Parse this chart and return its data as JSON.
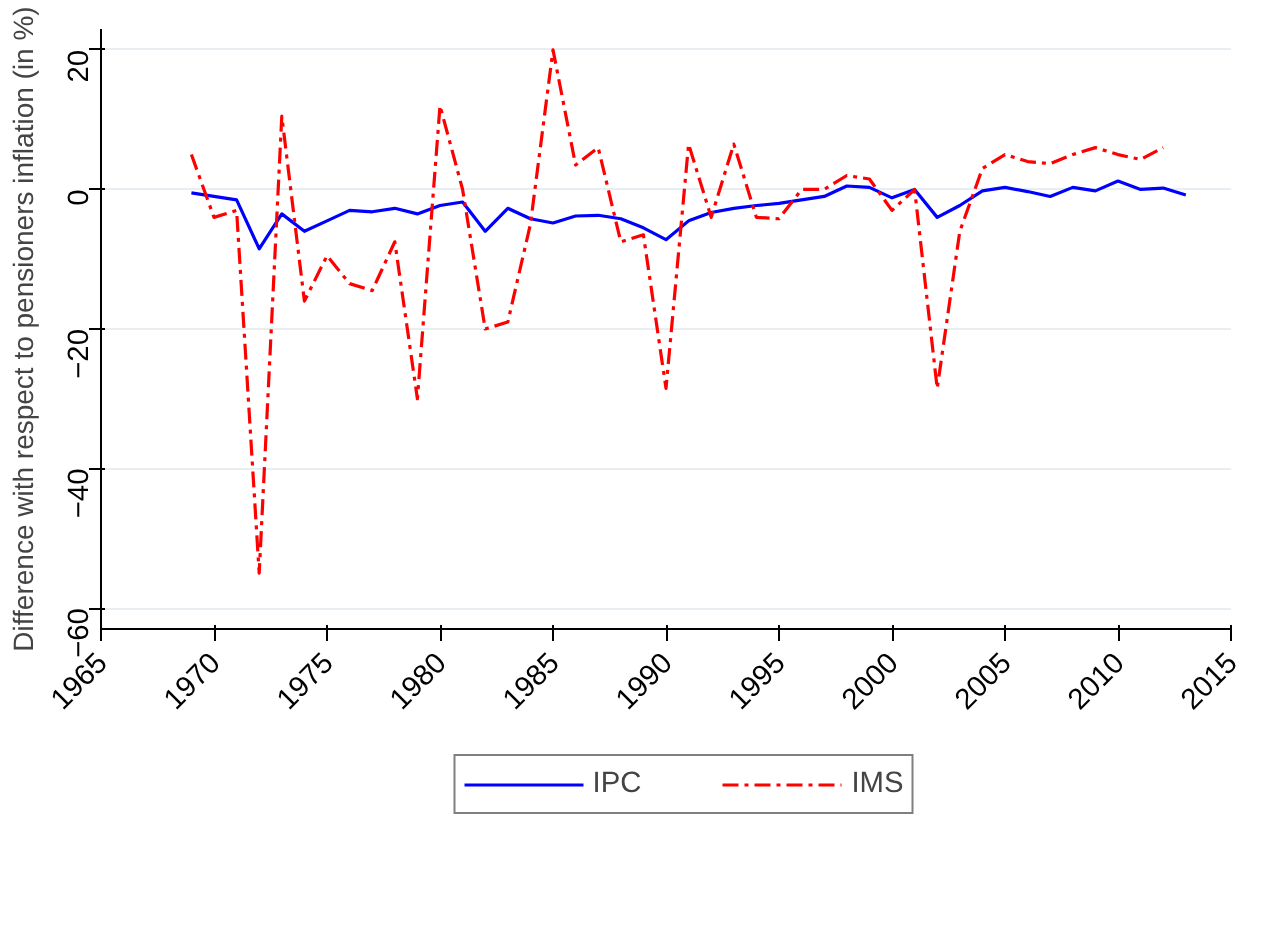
{
  "chart_data": {
    "type": "line",
    "ylabel": "Difference with respect to pensioners inflation (in %)",
    "x": [
      1969,
      1970,
      1971,
      1972,
      1973,
      1974,
      1975,
      1976,
      1977,
      1978,
      1979,
      1980,
      1981,
      1982,
      1983,
      1984,
      1985,
      1986,
      1987,
      1988,
      1989,
      1990,
      1991,
      1992,
      1993,
      1994,
      1995,
      1996,
      1997,
      1998,
      1999,
      2000,
      2001,
      2002,
      2003,
      2004,
      2005,
      2006,
      2007,
      2008,
      2009,
      2010,
      2011,
      2012,
      2013
    ],
    "series": [
      {
        "name": "IPC",
        "color": "#0000ff",
        "line_style": "solid",
        "values": [
          -0.5,
          -1,
          -1.5,
          -8.5,
          -3.5,
          -6,
          -4.5,
          -3,
          -3.2,
          -2.7,
          -3.5,
          -2.3,
          -1.8,
          -6,
          -2.7,
          -4.2,
          -4.8,
          -3.8,
          -3.7,
          -4.2,
          -5.5,
          -7.2,
          -4.5,
          -3.3,
          -2.7,
          -2.3,
          -2,
          -1.5,
          -1,
          0.5,
          0.3,
          -1.2,
          0,
          -4,
          -2.3,
          -0.2,
          0.3,
          -0.3,
          -1,
          0.3,
          -0.2,
          1.2,
          0,
          0.2,
          -0.8
        ]
      },
      {
        "name": "IMS",
        "color": "#ff0000",
        "line_style": "dashdot",
        "values": [
          5,
          -4,
          -3,
          -55,
          10.5,
          -16,
          -9.5,
          -13.5,
          -14.5,
          -7.5,
          -30,
          12,
          0,
          -20,
          -19,
          -5,
          20,
          3.5,
          6,
          -7.5,
          -6.5,
          -28.5,
          6.5,
          -4,
          6.5,
          -4,
          -4.2,
          0,
          0,
          2,
          1.5,
          -3,
          0,
          -28.5,
          -6,
          3,
          5,
          4,
          3.7,
          5,
          6,
          5,
          4.3,
          6,
          null
        ]
      }
    ],
    "xlim": [
      1965,
      2015
    ],
    "xticks": [
      1965,
      1970,
      1975,
      1980,
      1985,
      1990,
      1995,
      2000,
      2005,
      2010,
      2015
    ],
    "ylim": [
      -63,
      23
    ],
    "yticks": [
      -60,
      -40,
      -20,
      0,
      20
    ],
    "grid": "y",
    "legend": "bottom",
    "marker": "none"
  }
}
